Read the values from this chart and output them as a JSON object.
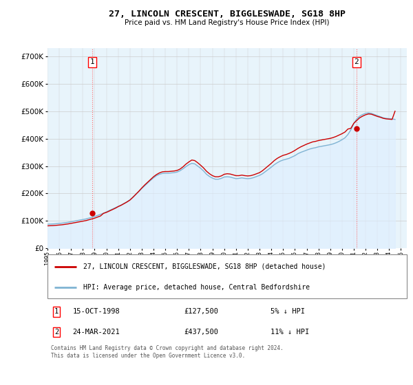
{
  "title": "27, LINCOLN CRESCENT, BIGGLESWADE, SG18 8HP",
  "subtitle": "Price paid vs. HM Land Registry's House Price Index (HPI)",
  "ylim": [
    0,
    730000
  ],
  "xlim_start": 1995.0,
  "xlim_end": 2025.5,
  "transaction1": {
    "date_num": 1998.79,
    "price": 127500,
    "label": "1"
  },
  "transaction2": {
    "date_num": 2021.23,
    "price": 437500,
    "label": "2"
  },
  "legend_line1": "27, LINCOLN CRESCENT, BIGGLESWADE, SG18 8HP (detached house)",
  "legend_line2": "HPI: Average price, detached house, Central Bedfordshire",
  "table_rows": [
    [
      "1",
      "15-OCT-1998",
      "£127,500",
      "5% ↓ HPI"
    ],
    [
      "2",
      "24-MAR-2021",
      "£437,500",
      "11% ↓ HPI"
    ]
  ],
  "footer": "Contains HM Land Registry data © Crown copyright and database right 2024.\nThis data is licensed under the Open Government Licence v3.0.",
  "line_color_red": "#cc0000",
  "line_color_blue": "#7fb3d3",
  "fill_color_blue": "#ddeeff",
  "grid_color": "#cccccc",
  "background_color": "#ffffff",
  "plot_bg_color": "#e8f4fb",
  "hpi_years": [
    1995.0,
    1995.25,
    1995.5,
    1995.75,
    1996.0,
    1996.25,
    1996.5,
    1996.75,
    1997.0,
    1997.25,
    1997.5,
    1997.75,
    1998.0,
    1998.25,
    1998.5,
    1998.75,
    1999.0,
    1999.25,
    1999.5,
    1999.75,
    2000.0,
    2000.25,
    2000.5,
    2000.75,
    2001.0,
    2001.25,
    2001.5,
    2001.75,
    2002.0,
    2002.25,
    2002.5,
    2002.75,
    2003.0,
    2003.25,
    2003.5,
    2003.75,
    2004.0,
    2004.25,
    2004.5,
    2004.75,
    2005.0,
    2005.25,
    2005.5,
    2005.75,
    2006.0,
    2006.25,
    2006.5,
    2006.75,
    2007.0,
    2007.25,
    2007.5,
    2007.75,
    2008.0,
    2008.25,
    2008.5,
    2008.75,
    2009.0,
    2009.25,
    2009.5,
    2009.75,
    2010.0,
    2010.25,
    2010.5,
    2010.75,
    2011.0,
    2011.25,
    2011.5,
    2011.75,
    2012.0,
    2012.25,
    2012.5,
    2012.75,
    2013.0,
    2013.25,
    2013.5,
    2013.75,
    2014.0,
    2014.25,
    2014.5,
    2014.75,
    2015.0,
    2015.25,
    2015.5,
    2015.75,
    2016.0,
    2016.25,
    2016.5,
    2016.75,
    2017.0,
    2017.25,
    2017.5,
    2017.75,
    2018.0,
    2018.25,
    2018.5,
    2018.75,
    2019.0,
    2019.25,
    2019.5,
    2019.75,
    2020.0,
    2020.25,
    2020.5,
    2020.75,
    2021.0,
    2021.25,
    2021.5,
    2021.75,
    2022.0,
    2022.25,
    2022.5,
    2022.75,
    2023.0,
    2023.25,
    2023.5,
    2023.75,
    2024.0,
    2024.25,
    2024.5
  ],
  "hpi_values": [
    88000,
    88500,
    89000,
    90000,
    91000,
    92000,
    93500,
    95000,
    97000,
    99000,
    101000,
    103000,
    105000,
    107000,
    110000,
    113000,
    116000,
    120000,
    124000,
    128000,
    133000,
    138000,
    143000,
    148000,
    153000,
    158000,
    164000,
    170000,
    177000,
    187000,
    197000,
    207000,
    218000,
    228000,
    238000,
    248000,
    257000,
    265000,
    270000,
    273000,
    274000,
    274000,
    275000,
    276000,
    278000,
    283000,
    290000,
    298000,
    305000,
    310000,
    308000,
    300000,
    292000,
    282000,
    270000,
    262000,
    256000,
    252000,
    252000,
    255000,
    260000,
    261000,
    260000,
    257000,
    254000,
    255000,
    257000,
    255000,
    254000,
    255000,
    258000,
    262000,
    266000,
    272000,
    280000,
    288000,
    296000,
    305000,
    312000,
    318000,
    322000,
    325000,
    328000,
    333000,
    338000,
    345000,
    350000,
    354000,
    358000,
    362000,
    365000,
    367000,
    370000,
    372000,
    374000,
    376000,
    378000,
    381000,
    385000,
    390000,
    396000,
    403000,
    415000,
    432000,
    455000,
    472000,
    482000,
    488000,
    492000,
    494000,
    492000,
    488000,
    484000,
    480000,
    476000,
    474000,
    473000,
    472000,
    470000
  ],
  "red_years": [
    1995.0,
    1995.25,
    1995.5,
    1995.75,
    1996.0,
    1996.25,
    1996.5,
    1996.75,
    1997.0,
    1997.25,
    1997.5,
    1997.75,
    1998.0,
    1998.25,
    1998.5,
    1998.75,
    1999.0,
    1999.25,
    1999.5,
    1999.75,
    2000.0,
    2000.25,
    2000.5,
    2000.75,
    2001.0,
    2001.25,
    2001.5,
    2001.75,
    2002.0,
    2002.25,
    2002.5,
    2002.75,
    2003.0,
    2003.25,
    2003.5,
    2003.75,
    2004.0,
    2004.25,
    2004.5,
    2004.75,
    2005.0,
    2005.25,
    2005.5,
    2005.75,
    2006.0,
    2006.25,
    2006.5,
    2006.75,
    2007.0,
    2007.25,
    2007.5,
    2007.75,
    2008.0,
    2008.25,
    2008.5,
    2008.75,
    2009.0,
    2009.25,
    2009.5,
    2009.75,
    2010.0,
    2010.25,
    2010.5,
    2010.75,
    2011.0,
    2011.25,
    2011.5,
    2011.75,
    2012.0,
    2012.25,
    2012.5,
    2012.75,
    2013.0,
    2013.25,
    2013.5,
    2013.75,
    2014.0,
    2014.25,
    2014.5,
    2014.75,
    2015.0,
    2015.25,
    2015.5,
    2015.75,
    2016.0,
    2016.25,
    2016.5,
    2016.75,
    2017.0,
    2017.25,
    2017.5,
    2017.75,
    2018.0,
    2018.25,
    2018.5,
    2018.75,
    2019.0,
    2019.25,
    2019.5,
    2019.75,
    2020.0,
    2020.25,
    2020.5,
    2020.75,
    2021.0,
    2021.25,
    2021.5,
    2021.75,
    2022.0,
    2022.25,
    2022.5,
    2022.75,
    2023.0,
    2023.25,
    2023.5,
    2023.75,
    2024.0,
    2024.25,
    2024.5
  ],
  "red_values": [
    82000,
    82500,
    83000,
    84000,
    85000,
    86000,
    87500,
    89000,
    91000,
    93000,
    95000,
    97000,
    99000,
    101000,
    104000,
    107000,
    110000,
    114000,
    118000,
    127500,
    131000,
    136000,
    141000,
    146000,
    152000,
    157000,
    163000,
    169000,
    176000,
    186000,
    197000,
    208000,
    220000,
    231000,
    241000,
    251000,
    261000,
    269000,
    275000,
    279000,
    280000,
    280000,
    281000,
    282000,
    284000,
    289000,
    297000,
    307000,
    315000,
    322000,
    320000,
    312000,
    303000,
    293000,
    281000,
    272000,
    265000,
    261000,
    261000,
    264000,
    270000,
    272000,
    271000,
    268000,
    265000,
    265000,
    267000,
    265000,
    264000,
    265000,
    268000,
    272000,
    276000,
    283000,
    292000,
    301000,
    310000,
    320000,
    328000,
    334000,
    339000,
    342000,
    346000,
    351000,
    357000,
    364000,
    370000,
    375000,
    380000,
    384000,
    388000,
    390000,
    393000,
    395000,
    397000,
    399000,
    401000,
    404000,
    408000,
    413000,
    418000,
    424000,
    435000,
    437500,
    456000,
    466000,
    476000,
    482000,
    487000,
    490000,
    489000,
    485000,
    481000,
    478000,
    474000,
    472000,
    471000,
    470000,
    500000
  ]
}
